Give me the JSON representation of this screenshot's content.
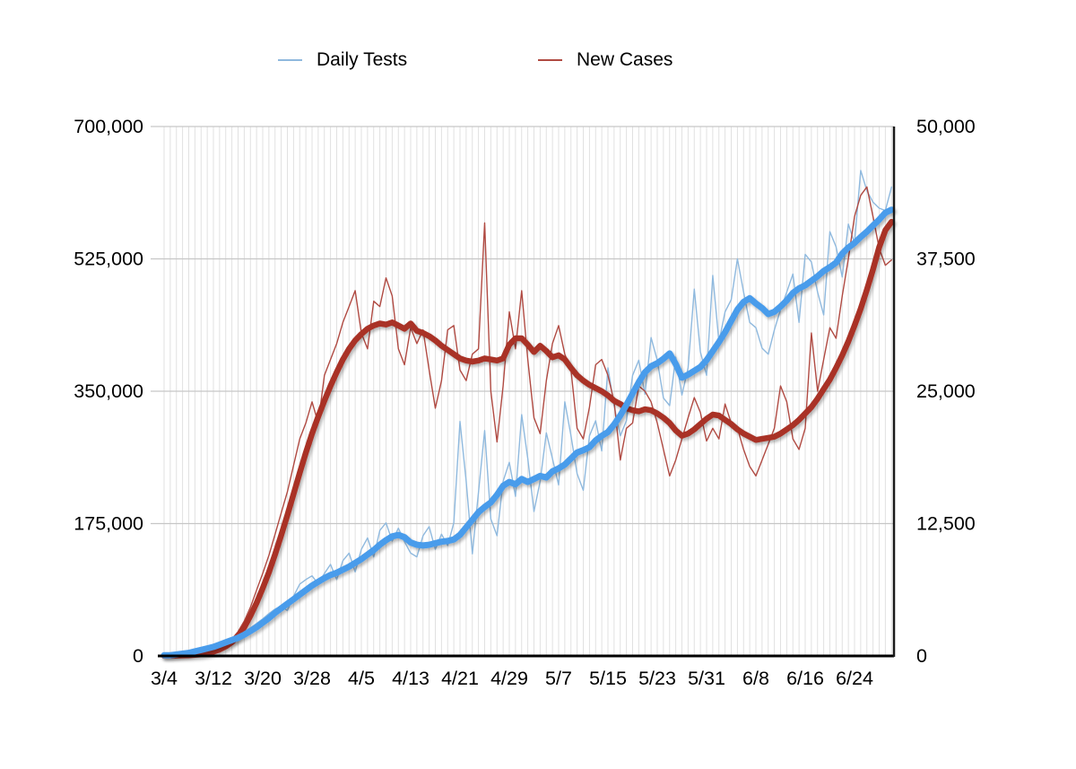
{
  "legend": {
    "items": [
      {
        "label": "Daily Tests",
        "color": "#8FB9DE"
      },
      {
        "label": "New Cases",
        "color": "#B04A42"
      }
    ]
  },
  "chart_data": {
    "type": "line",
    "title": "",
    "xlabel": "",
    "ylabel_left": "",
    "ylabel_right": "",
    "grid": true,
    "legend_position": "top",
    "left_axis": {
      "min": 0,
      "max": 700000,
      "tick_values": [
        0,
        175000,
        350000,
        525000,
        700000
      ],
      "tick_labels": [
        "0",
        "175,000",
        "350,000",
        "525,000",
        "700,000"
      ]
    },
    "right_axis": {
      "min": 0,
      "max": 50000,
      "tick_values": [
        0,
        12500,
        25000,
        37500,
        50000
      ],
      "tick_labels": [
        "0",
        "12,500",
        "25,000",
        "37,500",
        "50,000"
      ]
    },
    "x_tick_day_indices": [
      0,
      8,
      16,
      24,
      32,
      40,
      48,
      56,
      64,
      72,
      80,
      88,
      96,
      104,
      112
    ],
    "x_tick_labels": [
      "3/4",
      "3/12",
      "3/20",
      "3/28",
      "4/5",
      "4/13",
      "4/21",
      "4/29",
      "5/7",
      "5/15",
      "5/23",
      "5/31",
      "6/8",
      "6/16",
      "6/24"
    ],
    "dates": [
      "3/4",
      "3/5",
      "3/6",
      "3/7",
      "3/8",
      "3/9",
      "3/10",
      "3/11",
      "3/12",
      "3/13",
      "3/14",
      "3/15",
      "3/16",
      "3/17",
      "3/18",
      "3/19",
      "3/20",
      "3/21",
      "3/22",
      "3/23",
      "3/24",
      "3/25",
      "3/26",
      "3/27",
      "3/28",
      "3/29",
      "3/30",
      "3/31",
      "4/1",
      "4/2",
      "4/3",
      "4/4",
      "4/5",
      "4/6",
      "4/7",
      "4/8",
      "4/9",
      "4/10",
      "4/11",
      "4/12",
      "4/13",
      "4/14",
      "4/15",
      "4/16",
      "4/17",
      "4/18",
      "4/19",
      "4/20",
      "4/21",
      "4/22",
      "4/23",
      "4/24",
      "4/25",
      "4/26",
      "4/27",
      "4/28",
      "4/29",
      "4/30",
      "5/1",
      "5/2",
      "5/3",
      "5/4",
      "5/5",
      "5/6",
      "5/7",
      "5/8",
      "5/9",
      "5/10",
      "5/11",
      "5/12",
      "5/13",
      "5/14",
      "5/15",
      "5/16",
      "5/17",
      "5/18",
      "5/19",
      "5/20",
      "5/21",
      "5/22",
      "5/23",
      "5/24",
      "5/25",
      "5/26",
      "5/27",
      "5/28",
      "5/29",
      "5/30",
      "5/31",
      "6/1",
      "6/2",
      "6/3",
      "6/4",
      "6/5",
      "6/6",
      "6/7",
      "6/8",
      "6/9",
      "6/10",
      "6/11",
      "6/12",
      "6/13",
      "6/14",
      "6/15",
      "6/16",
      "6/17",
      "6/18",
      "6/19",
      "6/20",
      "6/21",
      "6/22",
      "6/23",
      "6/24",
      "6/25",
      "6/26",
      "6/27",
      "6/28",
      "6/29",
      "6/30"
    ],
    "series": [
      {
        "name": "Daily Tests (raw)",
        "axis": "left",
        "style": "thin",
        "color": "#8FB9DE",
        "width": 1.4,
        "values": [
          1000,
          1000,
          2000,
          3000,
          5000,
          7000,
          9000,
          11000,
          13000,
          17000,
          20000,
          22000,
          26000,
          31000,
          37000,
          43000,
          49000,
          56000,
          62000,
          66000,
          60000,
          79000,
          95000,
          101000,
          106000,
          95000,
          109000,
          121000,
          101000,
          126000,
          136000,
          111000,
          141000,
          156000,
          131000,
          166000,
          176000,
          152000,
          169000,
          151000,
          136000,
          131000,
          159000,
          171000,
          141000,
          161000,
          146000,
          176000,
          310000,
          231000,
          135000,
          216000,
          298000,
          181000,
          159000,
          231000,
          256000,
          211000,
          319000,
          261000,
          191000,
          231000,
          295000,
          261000,
          226000,
          336000,
          291000,
          241000,
          219000,
          291000,
          311000,
          271000,
          381000,
          331000,
          291000,
          311000,
          371000,
          391000,
          346000,
          421000,
          391000,
          341000,
          331000,
          395000,
          345000,
          381000,
          485000,
          402000,
          371000,
          503000,
          415000,
          455000,
          471000,
          525000,
          481000,
          441000,
          434000,
          407000,
          399000,
          431000,
          458000,
          481000,
          505000,
          441000,
          531000,
          521000,
          481000,
          451000,
          561000,
          541000,
          501000,
          571000,
          546000,
          642000,
          615000,
          600000,
          592000,
          589000,
          620000
        ]
      },
      {
        "name": "New Cases (raw)",
        "axis": "right",
        "style": "thin",
        "color": "#B04A42",
        "width": 1.4,
        "values": [
          20,
          20,
          30,
          60,
          80,
          120,
          200,
          300,
          500,
          700,
          1100,
          1600,
          2300,
          3300,
          4600,
          6200,
          7800,
          9500,
          11500,
          13500,
          15500,
          18000,
          20500,
          22000,
          24000,
          22000,
          26500,
          28000,
          29500,
          31500,
          33000,
          34500,
          30500,
          29000,
          33500,
          33000,
          35700,
          34000,
          29000,
          27500,
          31000,
          29500,
          30800,
          27000,
          23400,
          26000,
          30800,
          31200,
          27000,
          26000,
          28500,
          29000,
          40900,
          25000,
          20200,
          25500,
          32500,
          29000,
          34500,
          28000,
          22500,
          21000,
          26000,
          29500,
          31200,
          28500,
          27000,
          21500,
          20500,
          23500,
          27500,
          28000,
          26500,
          24000,
          18500,
          21500,
          22000,
          25500,
          25000,
          24000,
          22000,
          19500,
          17000,
          18500,
          20500,
          22500,
          24400,
          23000,
          20300,
          21500,
          20500,
          23800,
          22000,
          21500,
          19500,
          17900,
          17000,
          18500,
          20000,
          21500,
          25500,
          24000,
          20500,
          19500,
          21500,
          30500,
          25000,
          28000,
          31000,
          30000,
          34000,
          37500,
          41500,
          43500,
          44300,
          41500,
          38500,
          36900,
          37400
        ]
      },
      {
        "name": "New Cases (7-day avg)",
        "axis": "right",
        "style": "thick",
        "color": "#A93226",
        "width": 6.5,
        "values": [
          20,
          20,
          30,
          50,
          70,
          100,
          150,
          250,
          400,
          600,
          900,
          1300,
          1900,
          2700,
          3800,
          5000,
          6400,
          7900,
          9600,
          11400,
          13300,
          15300,
          17300,
          19200,
          21000,
          22600,
          24100,
          25500,
          26800,
          28000,
          29000,
          29800,
          30400,
          30900,
          31200,
          31400,
          31300,
          31500,
          31200,
          30900,
          31400,
          30700,
          30500,
          30200,
          29800,
          29300,
          28900,
          28500,
          28100,
          27900,
          27800,
          27900,
          28100,
          28000,
          27900,
          28100,
          29400,
          30000,
          30000,
          29400,
          28700,
          29300,
          28800,
          28200,
          28400,
          28000,
          27200,
          26500,
          26000,
          25600,
          25300,
          25000,
          24600,
          24100,
          23800,
          23400,
          23200,
          23100,
          23300,
          23200,
          22900,
          22500,
          22000,
          21300,
          20800,
          21000,
          21400,
          21900,
          22400,
          22800,
          22700,
          22300,
          21900,
          21400,
          21000,
          20700,
          20400,
          20500,
          20600,
          20700,
          21000,
          21400,
          21800,
          22300,
          22900,
          23500,
          24300,
          25200,
          26100,
          27200,
          28400,
          29700,
          31200,
          32800,
          34600,
          36500,
          38600,
          40200,
          41000
        ]
      },
      {
        "name": "Daily Tests (7-day avg)",
        "axis": "left",
        "style": "thick",
        "color": "#4A9CEB",
        "width": 7,
        "values": [
          1000,
          1000,
          2000,
          3000,
          4000,
          6000,
          8000,
          10000,
          12000,
          15000,
          18000,
          21000,
          24000,
          28000,
          33000,
          38000,
          44000,
          50000,
          57000,
          63000,
          69000,
          75000,
          81000,
          87000,
          93000,
          98000,
          103000,
          107000,
          110000,
          114000,
          118000,
          123000,
          128000,
          134000,
          140000,
          147000,
          153000,
          158000,
          160000,
          157000,
          150000,
          147000,
          146000,
          147000,
          149000,
          151000,
          152000,
          154000,
          160000,
          170000,
          180000,
          190000,
          197000,
          203000,
          213000,
          225000,
          230000,
          227000,
          234000,
          230000,
          234000,
          238000,
          236000,
          244000,
          248000,
          253000,
          261000,
          269000,
          272000,
          276000,
          285000,
          291000,
          296000,
          306000,
          318000,
          332000,
          347000,
          362000,
          375000,
          383000,
          387000,
          393000,
          400000,
          386000,
          368000,
          372000,
          377000,
          382000,
          391000,
          403000,
          415000,
          428000,
          443000,
          458000,
          468000,
          473000,
          466000,
          460000,
          452000,
          455000,
          462000,
          470000,
          480000,
          486000,
          490000,
          496000,
          502000,
          509000,
          514000,
          520000,
          532000,
          540000,
          546000,
          554000,
          561000,
          569000,
          577000,
          586000,
          590000
        ]
      }
    ]
  }
}
